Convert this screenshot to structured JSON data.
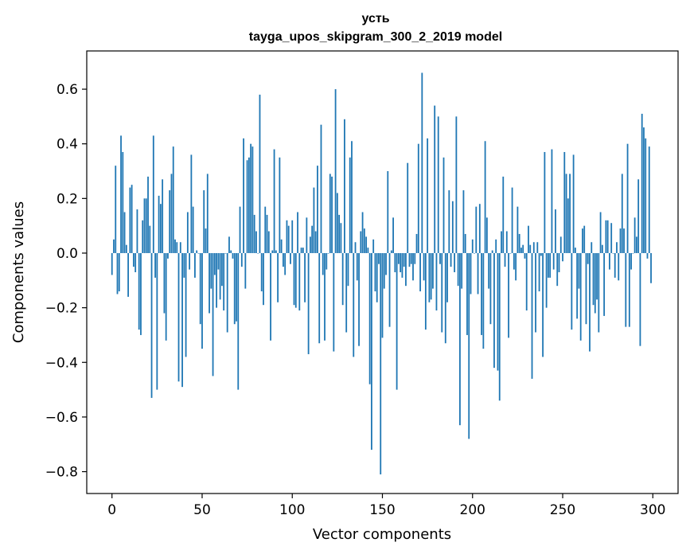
{
  "chart_data": {
    "type": "bar",
    "title": "усть",
    "subtitle": "tayga_upos_skipgram_300_2_2019 model",
    "xlabel": "Vector components",
    "ylabel": "Components values",
    "xlim": [
      -14,
      314
    ],
    "ylim": [
      -0.88,
      0.74
    ],
    "xticks": [
      0,
      50,
      100,
      150,
      200,
      250,
      300
    ],
    "xtick_labels": [
      "0",
      "50",
      "100",
      "150",
      "200",
      "250",
      "300"
    ],
    "yticks": [
      -0.8,
      -0.6,
      -0.4,
      -0.2,
      0.0,
      0.2,
      0.4,
      0.6
    ],
    "ytick_labels": [
      "−0.8",
      "−0.6",
      "−0.4",
      "−0.2",
      "0.0",
      "0.2",
      "0.4",
      "0.6"
    ],
    "bar_color": "#1f77b4",
    "values": [
      -0.08,
      0.05,
      0.32,
      -0.15,
      -0.14,
      0.43,
      0.37,
      0.15,
      0.03,
      -0.16,
      0.24,
      0.25,
      -0.05,
      -0.07,
      0.16,
      -0.28,
      -0.3,
      0.12,
      0.2,
      0.2,
      0.28,
      0.1,
      -0.53,
      0.43,
      -0.09,
      -0.5,
      0.21,
      0.18,
      0.27,
      -0.22,
      -0.32,
      -0.02,
      0.23,
      0.29,
      0.39,
      0.05,
      0.04,
      -0.47,
      0.04,
      -0.49,
      -0.09,
      -0.38,
      0.15,
      -0.06,
      0.36,
      0.17,
      -0.09,
      0.01,
      0.0,
      -0.26,
      -0.35,
      0.23,
      0.09,
      0.29,
      -0.22,
      -0.13,
      -0.45,
      -0.08,
      -0.2,
      -0.06,
      -0.17,
      -0.12,
      -0.21,
      0.0,
      -0.29,
      0.06,
      0.01,
      -0.02,
      -0.26,
      -0.25,
      -0.5,
      0.17,
      -0.05,
      0.42,
      -0.13,
      0.34,
      0.35,
      0.4,
      0.39,
      0.14,
      0.08,
      0.0,
      0.58,
      -0.14,
      -0.19,
      0.17,
      0.14,
      0.08,
      -0.32,
      0.01,
      0.38,
      0.01,
      -0.18,
      0.35,
      0.05,
      -0.05,
      -0.08,
      0.12,
      0.1,
      -0.04,
      0.12,
      -0.19,
      -0.2,
      0.15,
      -0.21,
      0.02,
      0.02,
      -0.18,
      0.13,
      -0.37,
      0.06,
      0.1,
      0.24,
      0.08,
      0.32,
      -0.33,
      0.47,
      -0.08,
      -0.32,
      -0.06,
      0.0,
      0.29,
      0.28,
      -0.36,
      0.6,
      0.22,
      0.14,
      0.11,
      -0.19,
      0.49,
      -0.29,
      -0.12,
      0.35,
      0.41,
      -0.38,
      0.04,
      -0.1,
      -0.34,
      0.08,
      0.15,
      0.09,
      0.06,
      0.02,
      -0.48,
      -0.72,
      0.05,
      -0.14,
      -0.18,
      -0.04,
      -0.81,
      -0.31,
      -0.13,
      -0.08,
      0.3,
      -0.27,
      0.01,
      0.13,
      -0.07,
      -0.5,
      -0.04,
      -0.07,
      -0.09,
      -0.05,
      -0.12,
      0.33,
      -0.05,
      -0.04,
      -0.1,
      -0.04,
      0.07,
      0.4,
      -0.14,
      0.66,
      -0.1,
      -0.28,
      0.42,
      -0.18,
      -0.17,
      -0.13,
      0.54,
      -0.21,
      0.5,
      -0.04,
      -0.29,
      0.35,
      -0.33,
      -0.18,
      0.23,
      -0.05,
      0.19,
      -0.07,
      0.5,
      -0.12,
      -0.63,
      -0.13,
      0.23,
      0.07,
      -0.3,
      -0.68,
      -0.15,
      0.05,
      0.0,
      0.17,
      -0.15,
      0.18,
      -0.3,
      -0.35,
      0.41,
      0.13,
      -0.13,
      -0.26,
      0.01,
      -0.42,
      0.05,
      -0.43,
      -0.54,
      0.08,
      0.28,
      -0.05,
      0.08,
      -0.31,
      0.0,
      0.24,
      -0.06,
      -0.1,
      0.17,
      0.07,
      0.02,
      0.03,
      -0.02,
      -0.21,
      0.1,
      0.03,
      -0.46,
      0.04,
      -0.29,
      0.04,
      -0.14,
      -0.01,
      -0.38,
      0.37,
      -0.2,
      -0.09,
      -0.09,
      0.38,
      -0.06,
      0.16,
      -0.12,
      -0.07,
      0.06,
      -0.03,
      0.37,
      0.29,
      0.2,
      0.29,
      -0.28,
      0.36,
      0.02,
      -0.24,
      -0.13,
      -0.32,
      0.09,
      0.1,
      -0.26,
      -0.04,
      -0.36,
      0.04,
      -0.19,
      -0.22,
      -0.17,
      -0.29,
      0.15,
      0.03,
      -0.23,
      0.12,
      0.12,
      -0.06,
      0.11,
      0.0,
      -0.09,
      0.04,
      -0.1,
      0.09,
      0.29,
      0.09,
      -0.27,
      0.4,
      -0.27,
      -0.06,
      0.0,
      0.13,
      0.06,
      0.27,
      -0.34,
      0.51,
      0.46,
      0.42,
      -0.02,
      0.39,
      -0.11
    ]
  }
}
